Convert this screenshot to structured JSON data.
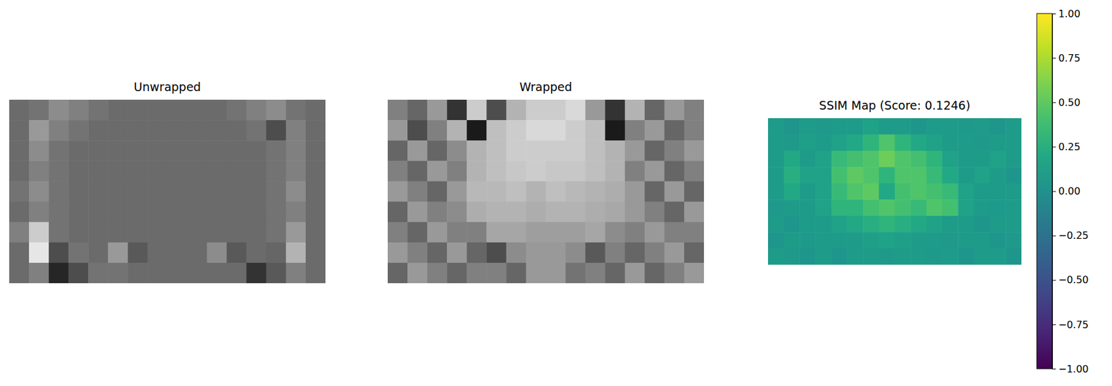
{
  "chart_data": [
    {
      "type": "heatmap",
      "title": "Unwrapped",
      "color": "gray",
      "tick_labels": false,
      "zlim": [
        0,
        1
      ],
      "cells": [
        [
          0.42,
          0.45,
          0.55,
          0.5,
          0.45,
          0.42,
          0.42,
          0.42,
          0.42,
          0.42,
          0.42,
          0.45,
          0.5,
          0.55,
          0.45,
          0.42
        ],
        [
          0.42,
          0.6,
          0.5,
          0.45,
          0.42,
          0.42,
          0.42,
          0.42,
          0.42,
          0.42,
          0.42,
          0.42,
          0.45,
          0.3,
          0.5,
          0.42
        ],
        [
          0.42,
          0.55,
          0.45,
          0.42,
          0.42,
          0.42,
          0.42,
          0.42,
          0.42,
          0.42,
          0.42,
          0.42,
          0.42,
          0.45,
          0.5,
          0.42
        ],
        [
          0.42,
          0.5,
          0.45,
          0.42,
          0.42,
          0.42,
          0.42,
          0.42,
          0.42,
          0.42,
          0.42,
          0.42,
          0.42,
          0.45,
          0.5,
          0.42
        ],
        [
          0.45,
          0.55,
          0.45,
          0.42,
          0.42,
          0.42,
          0.42,
          0.42,
          0.42,
          0.42,
          0.42,
          0.42,
          0.42,
          0.45,
          0.55,
          0.42
        ],
        [
          0.42,
          0.5,
          0.45,
          0.42,
          0.42,
          0.42,
          0.42,
          0.42,
          0.42,
          0.42,
          0.42,
          0.42,
          0.42,
          0.45,
          0.5,
          0.42
        ],
        [
          0.5,
          0.8,
          0.45,
          0.42,
          0.42,
          0.42,
          0.42,
          0.42,
          0.42,
          0.42,
          0.42,
          0.42,
          0.42,
          0.45,
          0.6,
          0.42
        ],
        [
          0.42,
          0.9,
          0.3,
          0.45,
          0.42,
          0.6,
          0.35,
          0.42,
          0.42,
          0.42,
          0.55,
          0.35,
          0.42,
          0.4,
          0.7,
          0.42
        ],
        [
          0.42,
          0.5,
          0.15,
          0.3,
          0.45,
          0.45,
          0.42,
          0.42,
          0.42,
          0.42,
          0.42,
          0.42,
          0.2,
          0.35,
          0.5,
          0.42
        ]
      ]
    },
    {
      "type": "heatmap",
      "title": "Wrapped",
      "color": "gray",
      "tick_labels": false,
      "zlim": [
        0,
        1
      ],
      "cells": [
        [
          0.5,
          0.4,
          0.6,
          0.2,
          0.8,
          0.3,
          0.7,
          0.8,
          0.8,
          0.85,
          0.6,
          0.2,
          0.7,
          0.4,
          0.6,
          0.5
        ],
        [
          0.6,
          0.3,
          0.5,
          0.7,
          0.1,
          0.75,
          0.8,
          0.85,
          0.85,
          0.8,
          0.75,
          0.1,
          0.5,
          0.6,
          0.4,
          0.5
        ],
        [
          0.4,
          0.6,
          0.4,
          0.55,
          0.7,
          0.75,
          0.8,
          0.8,
          0.8,
          0.8,
          0.75,
          0.7,
          0.6,
          0.4,
          0.5,
          0.6
        ],
        [
          0.5,
          0.4,
          0.6,
          0.5,
          0.7,
          0.75,
          0.78,
          0.8,
          0.78,
          0.78,
          0.75,
          0.7,
          0.5,
          0.6,
          0.4,
          0.5
        ],
        [
          0.6,
          0.5,
          0.4,
          0.6,
          0.72,
          0.72,
          0.75,
          0.7,
          0.75,
          0.72,
          0.7,
          0.68,
          0.6,
          0.4,
          0.6,
          0.4
        ],
        [
          0.4,
          0.6,
          0.5,
          0.55,
          0.68,
          0.7,
          0.7,
          0.68,
          0.7,
          0.7,
          0.68,
          0.66,
          0.6,
          0.5,
          0.4,
          0.6
        ],
        [
          0.5,
          0.4,
          0.6,
          0.5,
          0.5,
          0.65,
          0.65,
          0.62,
          0.62,
          0.62,
          0.65,
          0.55,
          0.5,
          0.6,
          0.5,
          0.5
        ],
        [
          0.6,
          0.5,
          0.4,
          0.6,
          0.4,
          0.3,
          0.55,
          0.6,
          0.6,
          0.55,
          0.35,
          0.5,
          0.4,
          0.5,
          0.6,
          0.4
        ],
        [
          0.4,
          0.6,
          0.5,
          0.4,
          0.5,
          0.5,
          0.4,
          0.6,
          0.6,
          0.45,
          0.5,
          0.4,
          0.6,
          0.4,
          0.5,
          0.6
        ]
      ]
    },
    {
      "type": "heatmap",
      "title": "SSIM Map (Score: 0.1246)",
      "color": "viridis",
      "tick_labels": false,
      "colorbar": {
        "range": [
          -1,
          1
        ],
        "ticks": [
          {
            "value": -1,
            "label": "−1.00"
          },
          {
            "value": -0.75,
            "label": "−0.75"
          },
          {
            "value": -0.5,
            "label": "−0.50"
          },
          {
            "value": -0.25,
            "label": "−0.25"
          },
          {
            "value": 0,
            "label": "0.00"
          },
          {
            "value": 0.25,
            "label": "0.25"
          },
          {
            "value": 0.5,
            "label": "0.50"
          },
          {
            "value": 0.75,
            "label": "0.75"
          },
          {
            "value": 1,
            "label": "1.00"
          }
        ]
      },
      "cells": [
        [
          0.1,
          0.05,
          0.1,
          0.08,
          0.1,
          0.1,
          0.15,
          0.1,
          0.1,
          0.05,
          0.1,
          0.1,
          0.08,
          0.1,
          0.05,
          0.1
        ],
        [
          0.1,
          0.08,
          0.12,
          0.1,
          0.15,
          0.2,
          0.3,
          0.45,
          0.3,
          0.2,
          0.15,
          0.1,
          0.1,
          0.08,
          0.1,
          0.1
        ],
        [
          0.1,
          0.2,
          0.1,
          0.15,
          0.35,
          0.4,
          0.45,
          0.55,
          0.45,
          0.4,
          0.3,
          0.15,
          0.1,
          0.1,
          0.15,
          0.1
        ],
        [
          0.1,
          0.25,
          0.15,
          0.15,
          0.4,
          0.5,
          0.45,
          0.3,
          0.45,
          0.45,
          0.35,
          0.2,
          0.1,
          0.15,
          0.1,
          0.05
        ],
        [
          0.1,
          0.2,
          0.1,
          0.15,
          0.35,
          0.45,
          0.5,
          0.2,
          0.4,
          0.45,
          0.4,
          0.35,
          0.15,
          0.1,
          0.1,
          0.1
        ],
        [
          0.08,
          0.1,
          0.1,
          0.15,
          0.3,
          0.3,
          0.4,
          0.45,
          0.4,
          0.35,
          0.45,
          0.4,
          0.15,
          0.1,
          0.08,
          0.1
        ],
        [
          0.1,
          0.05,
          0.1,
          0.1,
          0.15,
          0.2,
          0.25,
          0.3,
          0.25,
          0.2,
          0.15,
          0.1,
          0.1,
          0.05,
          0.1,
          0.1
        ],
        [
          0.05,
          0.1,
          0.08,
          0.1,
          0.1,
          0.1,
          0.12,
          0.15,
          0.12,
          0.1,
          0.1,
          0.08,
          0.1,
          0.1,
          0.05,
          0.08
        ],
        [
          0.1,
          0.08,
          0.05,
          0.1,
          0.05,
          0.1,
          0.1,
          0.08,
          0.1,
          0.1,
          0.08,
          0.1,
          0.05,
          0.1,
          0.1,
          0.05
        ]
      ]
    }
  ]
}
